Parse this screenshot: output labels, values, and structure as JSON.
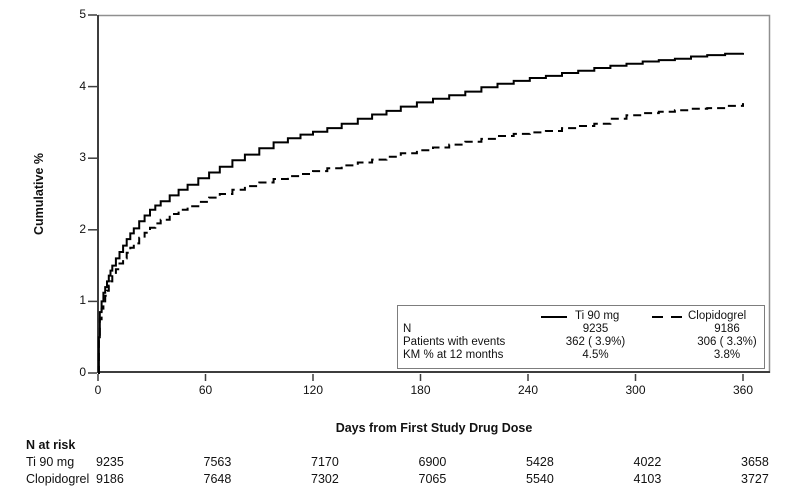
{
  "figure": {
    "y_axis_label": "Cumulative %",
    "x_axis_label": "Days from First Study Drug Dose"
  },
  "legend": {
    "entries": [
      {
        "label": "Ti 90 mg",
        "line": "solid-line-sample"
      },
      {
        "label": "Clopidogrel",
        "line": "dashed-line-sample"
      }
    ],
    "stats": {
      "row_labels": [
        "N",
        "Patients with events",
        "KM % at 12 months"
      ],
      "ti90": [
        "9235",
        "362 ( 3.9%)",
        "4.5%"
      ],
      "clopidogrel": [
        "9186",
        "306 ( 3.3%)",
        "3.8%"
      ]
    }
  },
  "risk_table": {
    "title": "N at risk",
    "rows": [
      {
        "label": "Ti 90 mg",
        "values": [
          "9235",
          "7563",
          "7170",
          "6900",
          "5428",
          "4022",
          "3658"
        ]
      },
      {
        "label": "Clopidogrel",
        "values": [
          "9186",
          "7648",
          "7302",
          "7065",
          "5540",
          "4103",
          "3727"
        ]
      }
    ]
  },
  "chart_data": {
    "type": "line",
    "subtype": "kaplan-meier-step",
    "title": "",
    "xlabel": "Days from First Study Drug Dose",
    "ylabel": "Cumulative %",
    "xlim": [
      0,
      375
    ],
    "ylim": [
      0,
      5
    ],
    "x_ticks": [
      0,
      60,
      120,
      180,
      240,
      300,
      360
    ],
    "y_ticks": [
      0,
      1,
      2,
      3,
      4,
      5
    ],
    "grid": false,
    "legend_position": "inside-lower-right",
    "series": [
      {
        "name": "Ti 90 mg",
        "style": "solid",
        "color": "#000000",
        "points": [
          [
            0,
            0
          ],
          [
            0.5,
            0.5
          ],
          [
            1,
            0.85
          ],
          [
            2,
            1.0
          ],
          [
            3,
            1.12
          ],
          [
            4,
            1.2
          ],
          [
            5,
            1.28
          ],
          [
            6,
            1.36
          ],
          [
            7,
            1.43
          ],
          [
            8,
            1.5
          ],
          [
            10,
            1.6
          ],
          [
            12,
            1.69
          ],
          [
            14,
            1.78
          ],
          [
            16,
            1.87
          ],
          [
            18,
            1.95
          ],
          [
            20,
            2.02
          ],
          [
            23,
            2.12
          ],
          [
            26,
            2.2
          ],
          [
            29,
            2.28
          ],
          [
            32,
            2.34
          ],
          [
            35,
            2.4
          ],
          [
            40,
            2.48
          ],
          [
            45,
            2.56
          ],
          [
            50,
            2.63
          ],
          [
            56,
            2.72
          ],
          [
            62,
            2.8
          ],
          [
            68,
            2.88
          ],
          [
            75,
            2.97
          ],
          [
            82,
            3.05
          ],
          [
            90,
            3.14
          ],
          [
            98,
            3.22
          ],
          [
            106,
            3.28
          ],
          [
            113,
            3.33
          ],
          [
            120,
            3.37
          ],
          [
            128,
            3.42
          ],
          [
            136,
            3.48
          ],
          [
            145,
            3.55
          ],
          [
            153,
            3.61
          ],
          [
            161,
            3.66
          ],
          [
            169,
            3.72
          ],
          [
            178,
            3.78
          ],
          [
            187,
            3.83
          ],
          [
            196,
            3.88
          ],
          [
            205,
            3.93
          ],
          [
            214,
            3.99
          ],
          [
            223,
            4.04
          ],
          [
            232,
            4.08
          ],
          [
            241,
            4.12
          ],
          [
            250,
            4.15
          ],
          [
            259,
            4.19
          ],
          [
            268,
            4.22
          ],
          [
            277,
            4.26
          ],
          [
            286,
            4.29
          ],
          [
            295,
            4.32
          ],
          [
            304,
            4.35
          ],
          [
            313,
            4.37
          ],
          [
            322,
            4.39
          ],
          [
            331,
            4.42
          ],
          [
            340,
            4.44
          ],
          [
            350,
            4.46
          ],
          [
            360,
            4.47
          ]
        ]
      },
      {
        "name": "Clopidogrel",
        "style": "dashed",
        "color": "#000000",
        "points": [
          [
            0,
            0
          ],
          [
            0.5,
            0.45
          ],
          [
            1,
            0.75
          ],
          [
            2,
            0.9
          ],
          [
            3,
            1.0
          ],
          [
            4,
            1.08
          ],
          [
            5,
            1.15
          ],
          [
            6,
            1.22
          ],
          [
            7,
            1.28
          ],
          [
            8,
            1.35
          ],
          [
            10,
            1.45
          ],
          [
            12,
            1.53
          ],
          [
            14,
            1.6
          ],
          [
            16,
            1.68
          ],
          [
            18,
            1.75
          ],
          [
            20,
            1.81
          ],
          [
            23,
            1.89
          ],
          [
            26,
            1.96
          ],
          [
            29,
            2.03
          ],
          [
            32,
            2.09
          ],
          [
            35,
            2.14
          ],
          [
            40,
            2.22
          ],
          [
            45,
            2.28
          ],
          [
            50,
            2.33
          ],
          [
            56,
            2.39
          ],
          [
            62,
            2.45
          ],
          [
            68,
            2.5
          ],
          [
            75,
            2.56
          ],
          [
            82,
            2.61
          ],
          [
            90,
            2.66
          ],
          [
            98,
            2.71
          ],
          [
            106,
            2.75
          ],
          [
            113,
            2.78
          ],
          [
            120,
            2.82
          ],
          [
            128,
            2.86
          ],
          [
            136,
            2.9
          ],
          [
            145,
            2.94
          ],
          [
            153,
            2.98
          ],
          [
            161,
            3.02
          ],
          [
            169,
            3.07
          ],
          [
            178,
            3.11
          ],
          [
            187,
            3.15
          ],
          [
            196,
            3.19
          ],
          [
            205,
            3.23
          ],
          [
            214,
            3.27
          ],
          [
            223,
            3.31
          ],
          [
            232,
            3.34
          ],
          [
            241,
            3.36
          ],
          [
            250,
            3.38
          ],
          [
            259,
            3.42
          ],
          [
            268,
            3.45
          ],
          [
            277,
            3.48
          ],
          [
            286,
            3.55
          ],
          [
            295,
            3.6
          ],
          [
            304,
            3.63
          ],
          [
            313,
            3.65
          ],
          [
            322,
            3.67
          ],
          [
            331,
            3.69
          ],
          [
            340,
            3.7
          ],
          [
            350,
            3.73
          ],
          [
            360,
            3.77
          ]
        ]
      }
    ]
  }
}
